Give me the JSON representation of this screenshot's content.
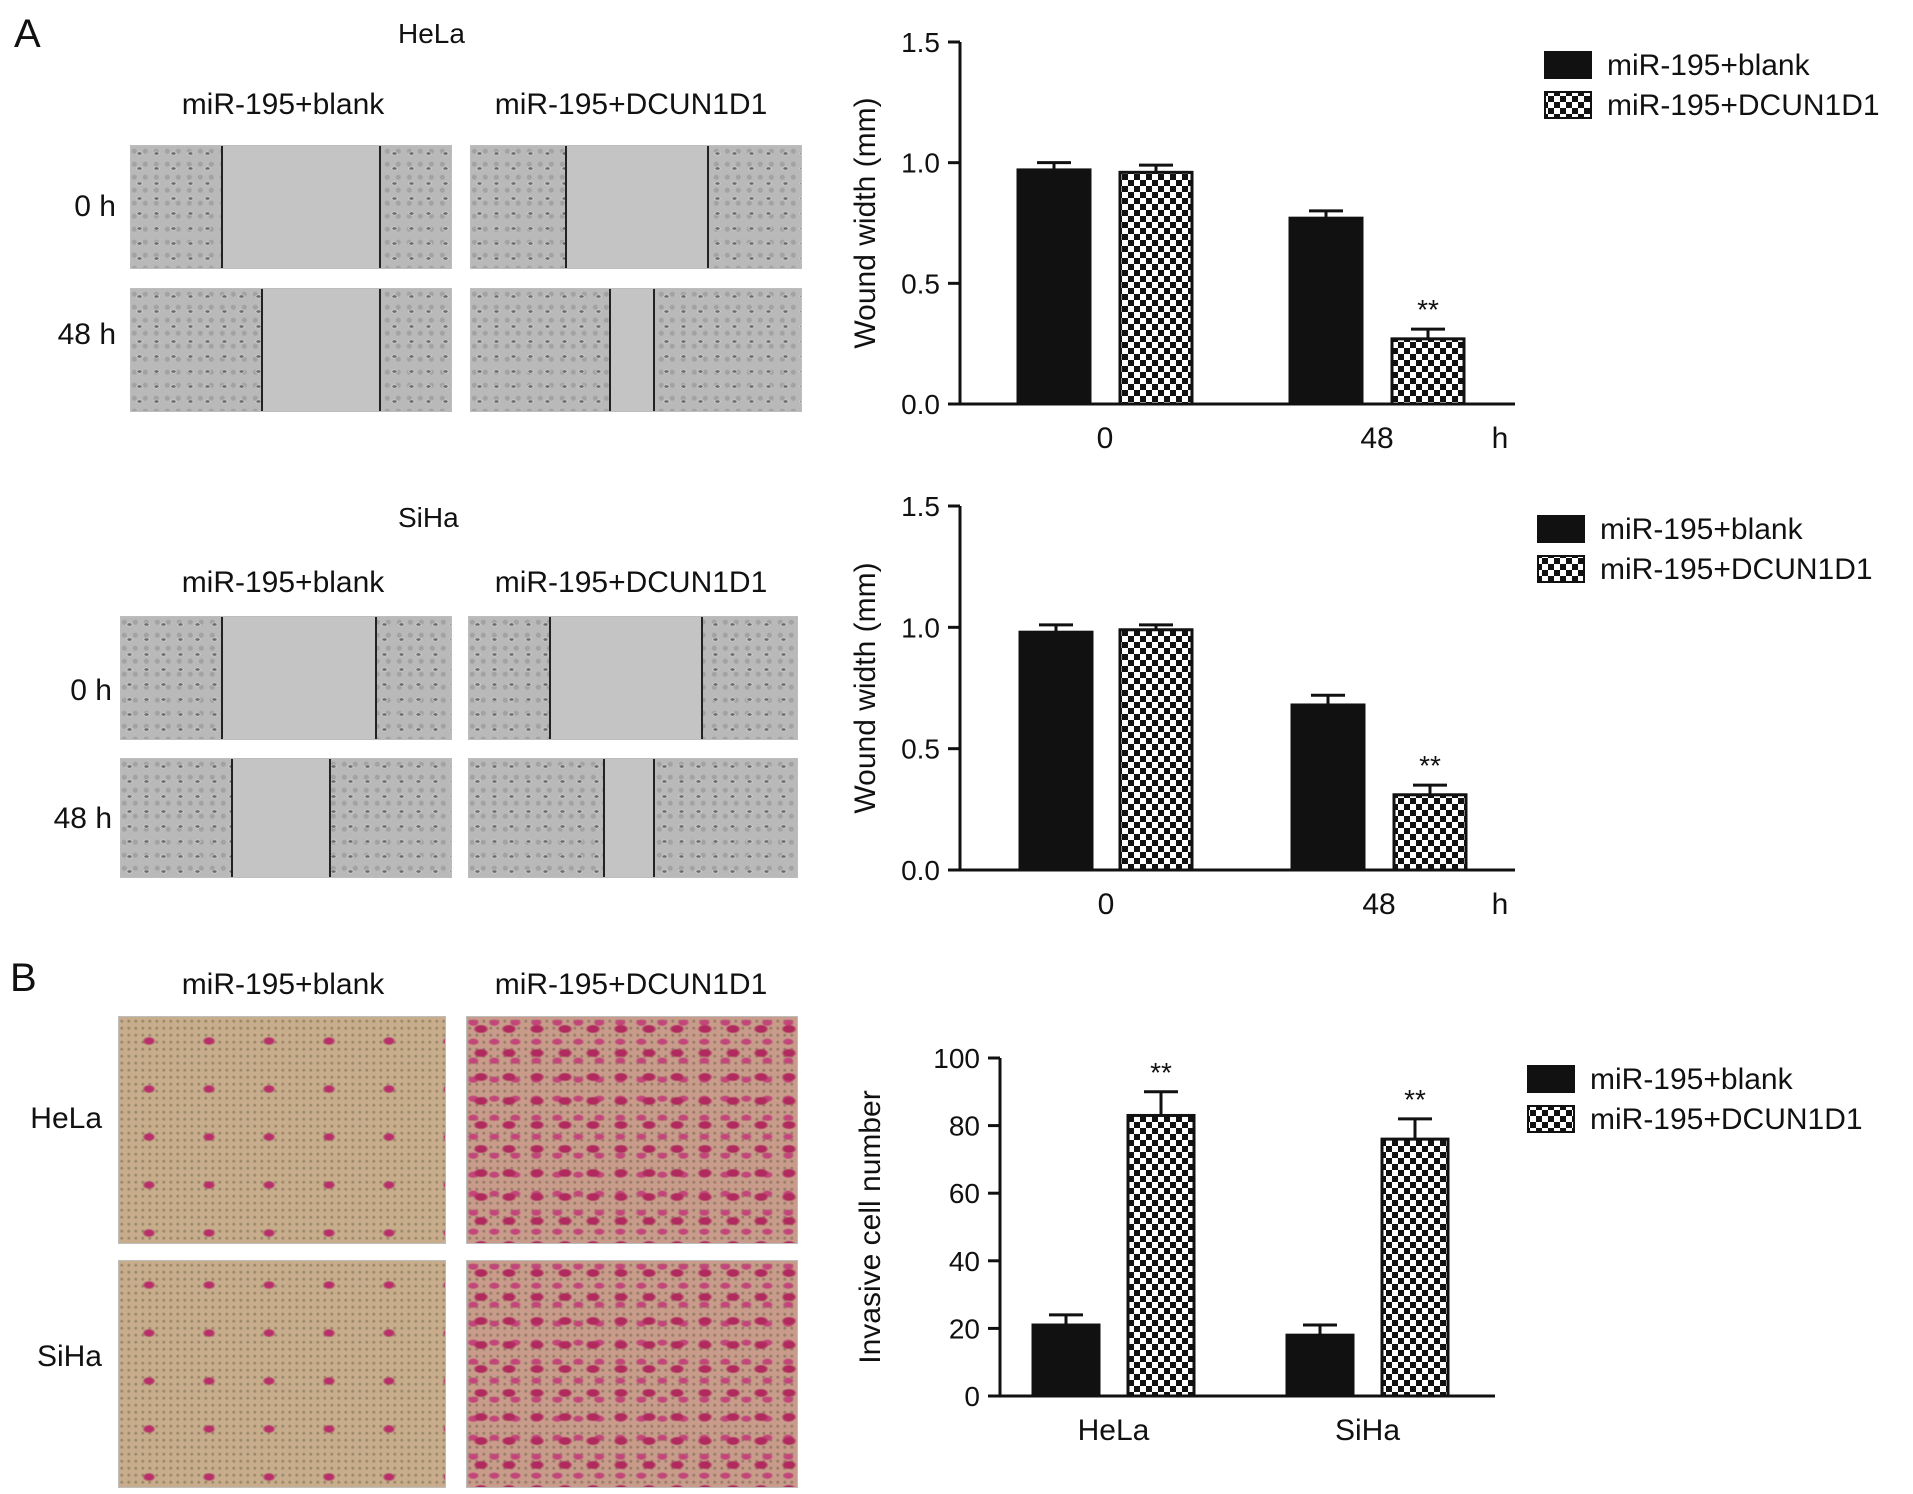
{
  "panel_a": {
    "letter": "A",
    "hela": {
      "title": "HeLa",
      "col_labels": [
        "miR-195+blank",
        "miR-195+DCUN1D1"
      ],
      "row_labels": [
        "0 h",
        "48 h"
      ]
    },
    "siha": {
      "title": "SiHa",
      "col_labels": [
        "miR-195+blank",
        "miR-195+DCUN1D1"
      ],
      "row_labels": [
        "0 h",
        "48 h"
      ]
    }
  },
  "panel_b": {
    "letter": "B",
    "col_labels": [
      "miR-195+blank",
      "miR-195+DCUN1D1"
    ],
    "row_labels": [
      "HeLa",
      "SiHa"
    ]
  },
  "chart_data": [
    {
      "type": "bar",
      "categories": [
        "0",
        "48"
      ],
      "x_unit": "h",
      "ylabel": "Wound width (mm)",
      "ylim": [
        0,
        1.5
      ],
      "yticks": [
        "0.0",
        "0.5",
        "1.0",
        "1.5"
      ],
      "series": [
        {
          "name": "miR-195+blank",
          "values": [
            0.97,
            0.77
          ],
          "errors": [
            0.03,
            0.03
          ],
          "pattern": "solid"
        },
        {
          "name": "miR-195+DCUN1D1",
          "values": [
            0.96,
            0.27
          ],
          "errors": [
            0.03,
            0.04
          ],
          "pattern": "checker"
        }
      ],
      "annotations": [
        {
          "series": 1,
          "category": 1,
          "text": "**"
        }
      ],
      "legend": "top-right",
      "grid": false
    },
    {
      "type": "bar",
      "categories": [
        "0",
        "48"
      ],
      "x_unit": "h",
      "ylabel": "Wound width (mm)",
      "ylim": [
        0,
        1.5
      ],
      "yticks": [
        "0.0",
        "0.5",
        "1.0",
        "1.5"
      ],
      "series": [
        {
          "name": "miR-195+blank",
          "values": [
            0.98,
            0.68
          ],
          "errors": [
            0.03,
            0.04
          ],
          "pattern": "solid"
        },
        {
          "name": "miR-195+DCUN1D1",
          "values": [
            0.99,
            0.31
          ],
          "errors": [
            0.02,
            0.04
          ],
          "pattern": "checker"
        }
      ],
      "annotations": [
        {
          "series": 1,
          "category": 1,
          "text": "**"
        }
      ],
      "legend": "top-right",
      "grid": false
    },
    {
      "type": "bar",
      "categories": [
        "HeLa",
        "SiHa"
      ],
      "x_unit": "",
      "ylabel": "Invasive cell number",
      "ylim": [
        0,
        100
      ],
      "yticks": [
        "0",
        "20",
        "40",
        "60",
        "80",
        "100"
      ],
      "series": [
        {
          "name": "miR-195+blank",
          "values": [
            21,
            18
          ],
          "errors": [
            3,
            3
          ],
          "pattern": "solid"
        },
        {
          "name": "miR-195+DCUN1D1",
          "values": [
            83,
            76
          ],
          "errors": [
            7,
            6
          ],
          "pattern": "checker"
        }
      ],
      "annotations": [
        {
          "series": 1,
          "category": 0,
          "text": "**"
        },
        {
          "series": 1,
          "category": 1,
          "text": "**"
        }
      ],
      "legend": "top-right",
      "grid": false
    }
  ]
}
